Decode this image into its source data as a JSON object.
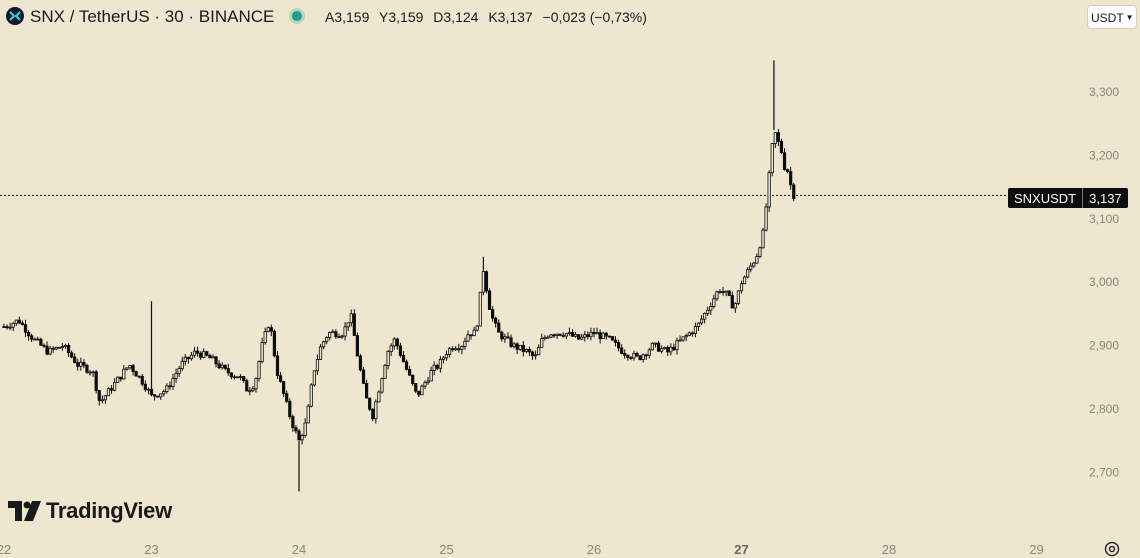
{
  "header": {
    "symbol": "SNX / TetherUS · 30 · BINANCE",
    "ohlc": {
      "open": "A3,159",
      "high": "Y3,159",
      "low": "D3,124",
      "close": "K3,137",
      "change": "−0,023 (−0,73%)"
    },
    "currency": "USDT"
  },
  "price_label": {
    "symbol": "SNXUSDT",
    "value": "3,137"
  },
  "brand": "TradingView",
  "colors": {
    "background": "#efe6d0",
    "candle": "#0d0d0d",
    "status": "#1f9e88"
  },
  "chart_data": {
    "type": "candlestick",
    "interval_minutes": 30,
    "y_ticks": [
      "3,300",
      "3,200",
      "3,100",
      "3,000",
      "2,900",
      "2,800",
      "2,700"
    ],
    "y_tick_values": [
      3.3,
      3.2,
      3.1,
      3.0,
      2.9,
      2.8,
      2.7
    ],
    "x_ticks": [
      "22",
      "23",
      "24",
      "25",
      "26",
      "27",
      "28",
      "29"
    ],
    "x_tick_values": [
      22,
      23,
      24,
      25,
      26,
      27,
      28,
      29
    ],
    "xlim": [
      22.0,
      29.6
    ],
    "ylim": [
      2.64,
      3.36
    ],
    "last_price": 3.137,
    "close_path": [
      [
        22.0,
        2.93
      ],
      [
        22.1,
        2.94
      ],
      [
        22.2,
        2.91
      ],
      [
        22.3,
        2.89
      ],
      [
        22.4,
        2.9
      ],
      [
        22.5,
        2.87
      ],
      [
        22.6,
        2.86
      ],
      [
        22.65,
        2.81
      ],
      [
        22.75,
        2.84
      ],
      [
        22.85,
        2.87
      ],
      [
        22.95,
        2.84
      ],
      [
        23.0,
        2.82
      ],
      [
        23.1,
        2.83
      ],
      [
        23.2,
        2.87
      ],
      [
        23.3,
        2.89
      ],
      [
        23.4,
        2.88
      ],
      [
        23.5,
        2.86
      ],
      [
        23.6,
        2.85
      ],
      [
        23.65,
        2.83
      ],
      [
        23.7,
        2.84
      ],
      [
        23.75,
        2.9
      ],
      [
        23.8,
        2.94
      ],
      [
        23.85,
        2.86
      ],
      [
        23.9,
        2.82
      ],
      [
        23.95,
        2.78
      ],
      [
        24.0,
        2.75
      ],
      [
        24.05,
        2.78
      ],
      [
        24.1,
        2.86
      ],
      [
        24.15,
        2.9
      ],
      [
        24.2,
        2.92
      ],
      [
        24.3,
        2.92
      ],
      [
        24.35,
        2.95
      ],
      [
        24.4,
        2.88
      ],
      [
        24.45,
        2.82
      ],
      [
        24.5,
        2.79
      ],
      [
        24.55,
        2.84
      ],
      [
        24.6,
        2.89
      ],
      [
        24.65,
        2.91
      ],
      [
        24.7,
        2.88
      ],
      [
        24.75,
        2.85
      ],
      [
        24.8,
        2.82
      ],
      [
        24.85,
        2.84
      ],
      [
        24.9,
        2.86
      ],
      [
        24.95,
        2.87
      ],
      [
        25.0,
        2.89
      ],
      [
        25.05,
        2.9
      ],
      [
        25.1,
        2.9
      ],
      [
        25.15,
        2.92
      ],
      [
        25.2,
        2.92
      ],
      [
        25.25,
        3.02
      ],
      [
        25.3,
        2.95
      ],
      [
        25.35,
        2.92
      ],
      [
        25.45,
        2.9
      ],
      [
        25.55,
        2.89
      ],
      [
        25.6,
        2.88
      ],
      [
        25.65,
        2.91
      ],
      [
        25.7,
        2.92
      ],
      [
        25.8,
        2.92
      ],
      [
        25.9,
        2.91
      ],
      [
        26.0,
        2.92
      ],
      [
        26.1,
        2.91
      ],
      [
        26.2,
        2.89
      ],
      [
        26.3,
        2.88
      ],
      [
        26.4,
        2.9
      ],
      [
        26.5,
        2.89
      ],
      [
        26.6,
        2.91
      ],
      [
        26.7,
        2.93
      ],
      [
        26.75,
        2.95
      ],
      [
        26.8,
        2.97
      ],
      [
        26.85,
        2.99
      ],
      [
        26.9,
        2.98
      ],
      [
        26.95,
        2.96
      ],
      [
        27.0,
        3.0
      ],
      [
        27.05,
        3.02
      ],
      [
        27.1,
        3.04
      ],
      [
        27.15,
        3.08
      ],
      [
        27.18,
        3.15
      ],
      [
        27.22,
        3.24
      ],
      [
        27.25,
        3.22
      ],
      [
        27.28,
        3.2
      ],
      [
        27.3,
        3.17
      ],
      [
        27.32,
        3.18
      ],
      [
        27.34,
        3.14
      ],
      [
        27.36,
        3.137
      ]
    ],
    "spike_wicks": [
      {
        "x": 24.0,
        "low": 2.67
      },
      {
        "x": 27.22,
        "high": 3.35
      },
      {
        "x": 23.0,
        "high": 2.97
      },
      {
        "x": 25.25,
        "high": 3.04
      }
    ]
  }
}
